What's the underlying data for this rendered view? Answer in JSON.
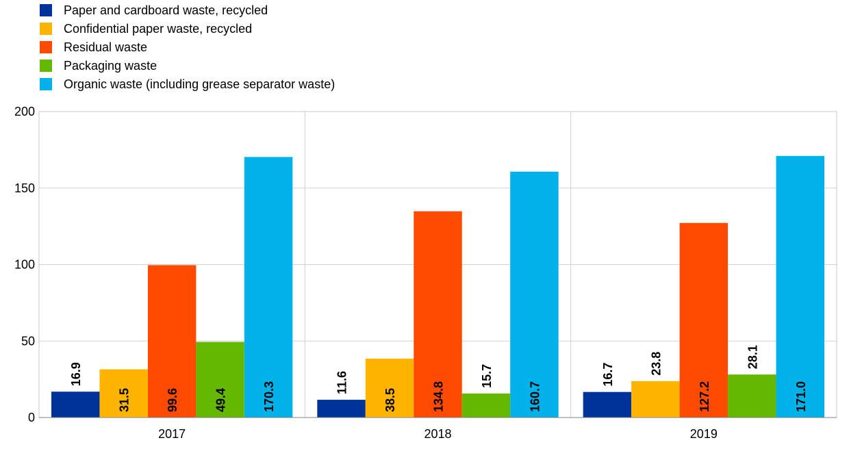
{
  "chart_data": {
    "type": "bar",
    "title": "",
    "xlabel": "",
    "ylabel": "",
    "categories": [
      "2017",
      "2018",
      "2019"
    ],
    "ylim": [
      0,
      200
    ],
    "yticks": [
      0,
      50,
      100,
      150,
      200
    ],
    "grid": true,
    "legend_position": "top-left",
    "series": [
      {
        "name": "Paper and cardboard waste, recycled",
        "color": "#003399",
        "values": [
          16.9,
          11.6,
          16.7
        ],
        "labels": [
          "16.9",
          "11.6",
          "16.7"
        ]
      },
      {
        "name": "Confidential paper waste, recycled",
        "color": "#FFB400",
        "values": [
          31.5,
          38.5,
          23.8
        ],
        "labels": [
          "31.5",
          "38.5",
          "23.8"
        ]
      },
      {
        "name": "Residual waste",
        "color": "#FF4B00",
        "values": [
          99.6,
          134.8,
          127.2
        ],
        "labels": [
          "99.6",
          "134.8",
          "127.2"
        ]
      },
      {
        "name": "Packaging waste",
        "color": "#65B800",
        "values": [
          49.4,
          15.7,
          28.1
        ],
        "labels": [
          "49.4",
          "15.7",
          "28.1"
        ]
      },
      {
        "name": "Organic waste (including grease separator waste)",
        "color": "#00B1EA",
        "values": [
          170.3,
          160.7,
          171.0
        ],
        "labels": [
          "170.3",
          "160.7",
          "171.0"
        ]
      }
    ]
  }
}
